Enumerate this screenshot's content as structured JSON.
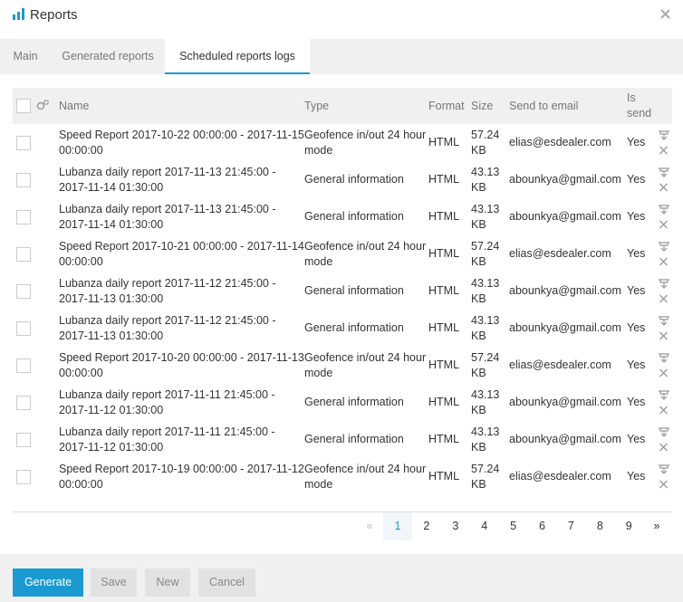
{
  "header": {
    "title": "Reports"
  },
  "tabs": [
    "Main",
    "Generated reports",
    "Scheduled reports logs"
  ],
  "table": {
    "columns": [
      "Name",
      "Type",
      "Format",
      "Size",
      "Send to email",
      "Is send"
    ],
    "rows": [
      [
        "Speed Report 2017-10-22 00:00:00 - 2017-11-15 00:00:00",
        "Geofence in/out 24 hour mode",
        "HTML",
        "57.24 KB",
        "elias@esdealer.com",
        "Yes"
      ],
      [
        "Lubanza daily report 2017-11-13 21:45:00 - 2017-11-14 01:30:00",
        "General information",
        "HTML",
        "43.13 KB",
        "abounkya@gmail.com",
        "Yes"
      ],
      [
        "Lubanza daily report 2017-11-13 21:45:00 - 2017-11-14 01:30:00",
        "General information",
        "HTML",
        "43.13 KB",
        "abounkya@gmail.com",
        "Yes"
      ],
      [
        "Speed Report 2017-10-21 00:00:00 - 2017-11-14 00:00:00",
        "Geofence in/out 24 hour mode",
        "HTML",
        "57.24 KB",
        "elias@esdealer.com",
        "Yes"
      ],
      [
        "Lubanza daily report 2017-11-12 21:45:00 - 2017-11-13 01:30:00",
        "General information",
        "HTML",
        "43.13 KB",
        "abounkya@gmail.com",
        "Yes"
      ],
      [
        "Lubanza daily report 2017-11-12 21:45:00 - 2017-11-13 01:30:00",
        "General information",
        "HTML",
        "43.13 KB",
        "abounkya@gmail.com",
        "Yes"
      ],
      [
        "Speed Report 2017-10-20 00:00:00 - 2017-11-13 00:00:00",
        "Geofence in/out 24 hour mode",
        "HTML",
        "57.24 KB",
        "elias@esdealer.com",
        "Yes"
      ],
      [
        "Lubanza daily report 2017-11-11 21:45:00 - 2017-11-12 01:30:00",
        "General information",
        "HTML",
        "43.13 KB",
        "abounkya@gmail.com",
        "Yes"
      ],
      [
        "Lubanza daily report 2017-11-11 21:45:00 - 2017-11-12 01:30:00",
        "General information",
        "HTML",
        "43.13 KB",
        "abounkya@gmail.com",
        "Yes"
      ],
      [
        "Speed Report 2017-10-19 00:00:00 - 2017-11-12 00:00:00",
        "Geofence in/out 24 hour mode",
        "HTML",
        "57.24 KB",
        "elias@esdealer.com",
        "Yes"
      ]
    ]
  },
  "pagination": {
    "prev": "«",
    "pages": [
      "1",
      "2",
      "3",
      "4",
      "5",
      "6",
      "7",
      "8",
      "9"
    ],
    "next": "»"
  },
  "buttons": [
    "Generate",
    "Save",
    "New",
    "Cancel"
  ]
}
